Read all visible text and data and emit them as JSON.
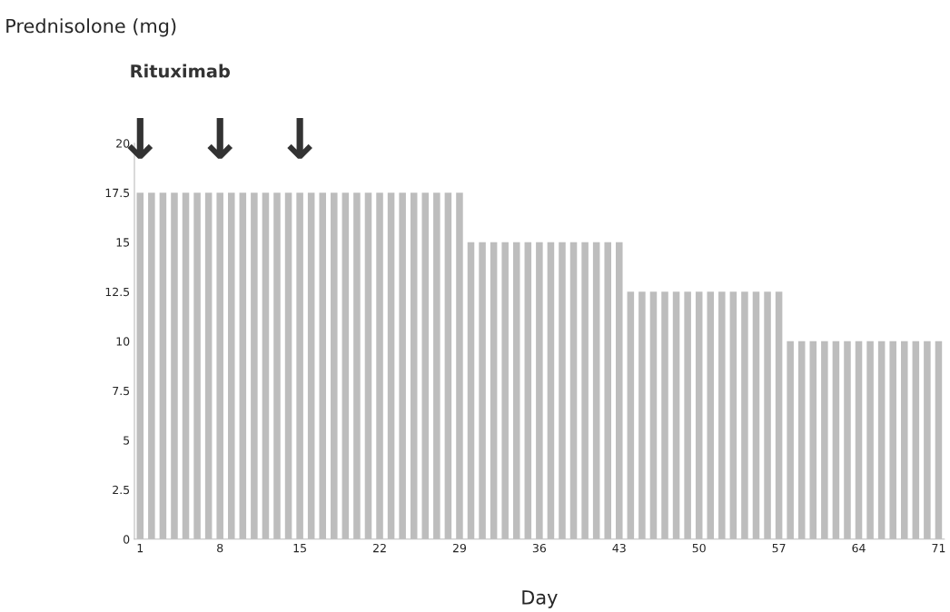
{
  "chart_data": {
    "type": "bar",
    "xlabel": "Day",
    "categories": [
      "1",
      null,
      null,
      null,
      null,
      null,
      null,
      "8",
      null,
      null,
      null,
      null,
      null,
      null,
      "15",
      null,
      null,
      null,
      null,
      null,
      null,
      "22",
      null,
      null,
      null,
      null,
      null,
      null,
      "29",
      null,
      null,
      null,
      null,
      null,
      null,
      "36",
      null,
      null,
      null,
      null,
      null,
      null,
      "43",
      null,
      null,
      null,
      null,
      null,
      null,
      "50",
      null,
      null,
      null,
      null,
      null,
      null,
      "57",
      null,
      null,
      null,
      null,
      null,
      null,
      "64",
      null,
      null,
      null,
      null,
      null,
      null,
      "71"
    ],
    "values": [
      17.5,
      17.5,
      17.5,
      17.5,
      17.5,
      17.5,
      17.5,
      17.5,
      17.5,
      17.5,
      17.5,
      17.5,
      17.5,
      17.5,
      17.5,
      17.5,
      17.5,
      17.5,
      17.5,
      17.5,
      17.5,
      17.5,
      17.5,
      17.5,
      17.5,
      17.5,
      17.5,
      17.5,
      17.5,
      15,
      15,
      15,
      15,
      15,
      15,
      15,
      15,
      15,
      15,
      15,
      15,
      15,
      15,
      12.5,
      12.5,
      12.5,
      12.5,
      12.5,
      12.5,
      12.5,
      12.5,
      12.5,
      12.5,
      12.5,
      12.5,
      12.5,
      12.5,
      10,
      10,
      10,
      10,
      10,
      10,
      10,
      10,
      10,
      10,
      10,
      10,
      10,
      10
    ],
    "color": "#bdbdbd",
    "ylim": [
      0,
      20
    ],
    "yticks": [
      0,
      2.5,
      5,
      7.5,
      10,
      12.5,
      15,
      17.5,
      20
    ],
    "grid": false,
    "annotations": [
      "Prednisolone (mg)",
      "Rituximab",
      "↓",
      "↓",
      "↓"
    ]
  }
}
